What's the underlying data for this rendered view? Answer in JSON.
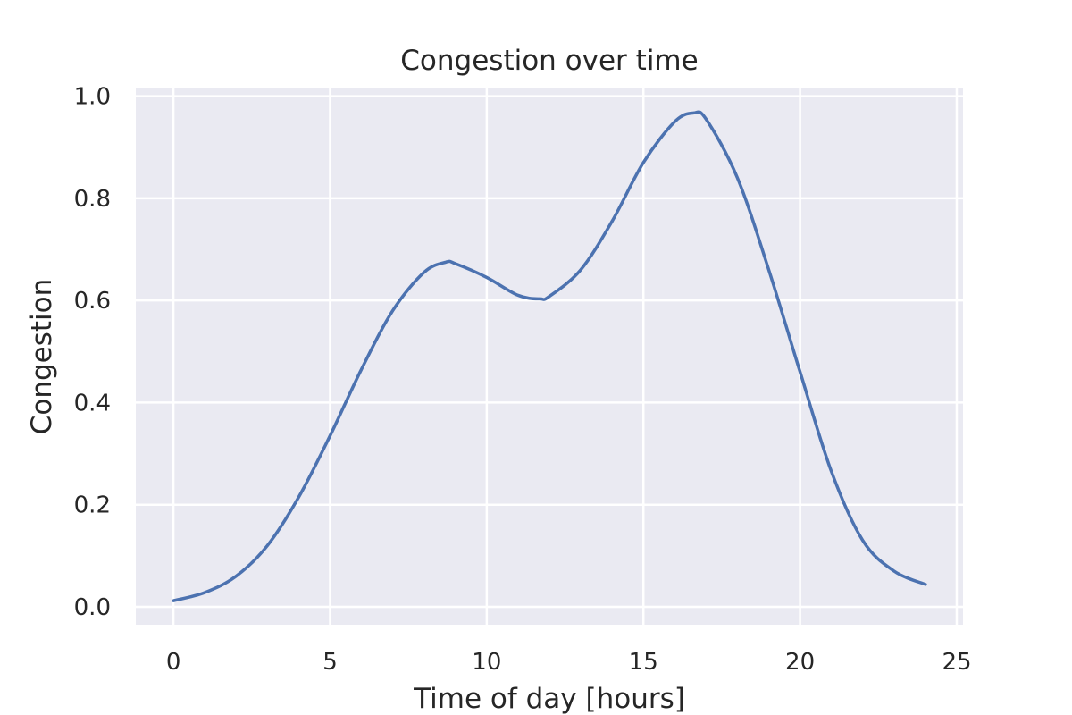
{
  "chart_data": {
    "type": "line",
    "title": "Congestion over time",
    "xlabel": "Time of day [hours]",
    "ylabel": "Congestion",
    "xlim": [
      -1.2,
      25.2
    ],
    "ylim": [
      -0.035,
      1.015
    ],
    "xticks": [
      0,
      5,
      10,
      15,
      20,
      25
    ],
    "yticks": [
      0.0,
      0.2,
      0.4,
      0.6,
      0.8,
      1.0
    ],
    "xtick_labels": [
      "0",
      "5",
      "10",
      "15",
      "20",
      "25"
    ],
    "ytick_labels": [
      "0.0",
      "0.2",
      "0.4",
      "0.6",
      "0.8",
      "1.0"
    ],
    "grid": true,
    "series": [
      {
        "color": "#4c72b0",
        "x": [
          0,
          1,
          2,
          3,
          4,
          5,
          6,
          7,
          8,
          8.7,
          9,
          10,
          11,
          11.7,
          12,
          13,
          14,
          15,
          16,
          16.6,
          17,
          18,
          19,
          20,
          21,
          22,
          23,
          24
        ],
        "y": [
          0.012,
          0.028,
          0.06,
          0.12,
          0.215,
          0.335,
          0.465,
          0.58,
          0.655,
          0.675,
          0.672,
          0.645,
          0.61,
          0.603,
          0.608,
          0.66,
          0.755,
          0.87,
          0.95,
          0.967,
          0.955,
          0.84,
          0.66,
          0.46,
          0.265,
          0.13,
          0.07,
          0.044
        ]
      }
    ]
  },
  "colors": {
    "plot_background": "#eaeaf2",
    "grid": "#ffffff",
    "text": "#262626"
  }
}
